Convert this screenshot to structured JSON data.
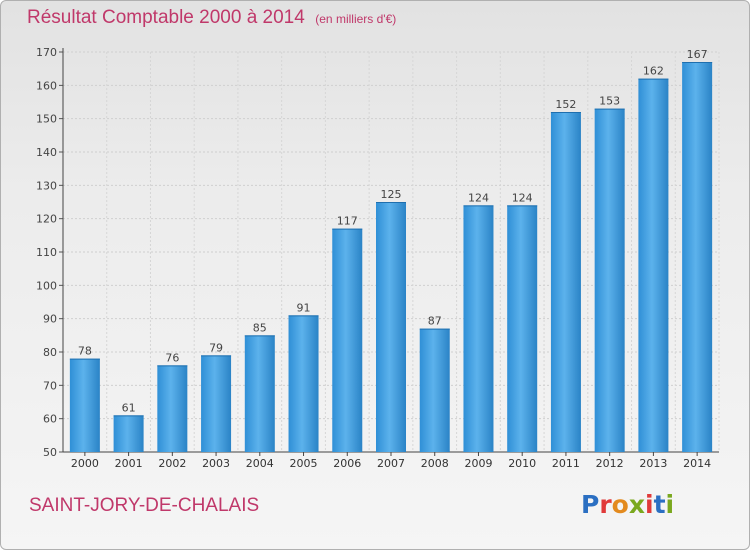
{
  "title": "Résultat Comptable 2000 à 2014",
  "unit_label": "(en milliers d'€)",
  "commune": "SAINT-JORY-DE-CHALAIS",
  "logo": {
    "text": "Proxiti",
    "letter_colors": [
      "#2b6fc2",
      "#e03a3a",
      "#e38a1e",
      "#7aa81e",
      "#e03a3a",
      "#2b6fc2",
      "#7aa81e"
    ]
  },
  "colors": {
    "title": "#c0386a",
    "bar": "#3d9ee0",
    "bar_light": "#63b6ee",
    "bar_dark": "#2a86c8"
  },
  "chart_data": {
    "type": "bar",
    "categories": [
      "2000",
      "2001",
      "2002",
      "2003",
      "2004",
      "2005",
      "2006",
      "2007",
      "2008",
      "2009",
      "2010",
      "2011",
      "2012",
      "2013",
      "2014"
    ],
    "values": [
      78,
      61,
      76,
      79,
      85,
      91,
      117,
      125,
      87,
      124,
      124,
      152,
      153,
      162,
      167
    ],
    "ylim": [
      50,
      170
    ],
    "yticks": [
      50,
      60,
      70,
      80,
      90,
      100,
      110,
      120,
      130,
      140,
      150,
      160,
      170
    ],
    "grid": true,
    "title": "Résultat Comptable 2000 à 2014",
    "xlabel": "",
    "ylabel": ""
  }
}
